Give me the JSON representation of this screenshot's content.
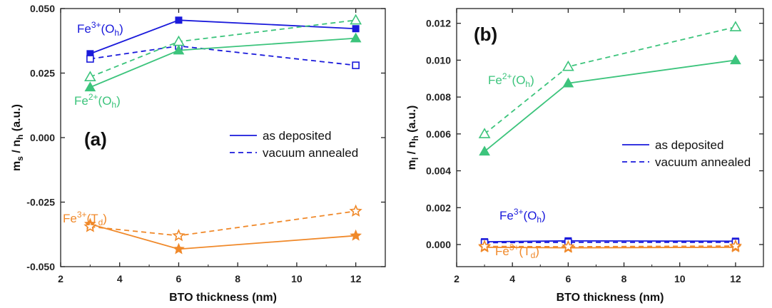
{
  "chart_data": [
    {
      "type": "line",
      "panel_label": "(a)",
      "xlabel": "BTO thickness (nm)",
      "ylabel_main": "m",
      "ylabel_sub1": "s",
      "ylabel_mid": " / n",
      "ylabel_sub2": "h",
      "ylabel_tail": " (a.u.)",
      "xlim": [
        2,
        13
      ],
      "ylim": [
        -0.05,
        0.05
      ],
      "xticks": [
        2,
        4,
        6,
        8,
        10,
        12
      ],
      "yticks": [
        -0.05,
        -0.025,
        0,
        0.025,
        0.05
      ],
      "ytick_labels": [
        "-0.050",
        "-0.025",
        "0.000",
        "0.025",
        "0.050"
      ],
      "x": [
        3,
        6,
        12
      ],
      "series": [
        {
          "ion": "Fe3+(Oh)",
          "condition": "as deposited",
          "color": "#1a1adb",
          "marker": "square",
          "filled": true,
          "dashed": false,
          "values": [
            0.0325,
            0.0455,
            0.0422
          ]
        },
        {
          "ion": "Fe3+(Oh)",
          "condition": "vacuum annealed",
          "color": "#1a1adb",
          "marker": "square",
          "filled": false,
          "dashed": true,
          "values": [
            0.0305,
            0.0355,
            0.028
          ]
        },
        {
          "ion": "Fe2+(Oh)",
          "condition": "as deposited",
          "color": "#3cc47c",
          "marker": "triangle",
          "filled": true,
          "dashed": false,
          "values": [
            0.0195,
            0.0338,
            0.0385
          ]
        },
        {
          "ion": "Fe2+(Oh)",
          "condition": "vacuum annealed",
          "color": "#3cc47c",
          "marker": "triangle",
          "filled": false,
          "dashed": true,
          "values": [
            0.0235,
            0.0372,
            0.0455
          ]
        },
        {
          "ion": "Fe3+(Td)",
          "condition": "as deposited",
          "color": "#f0892a",
          "marker": "star",
          "filled": true,
          "dashed": false,
          "values": [
            -0.0335,
            -0.0432,
            -0.038
          ]
        },
        {
          "ion": "Fe3+(Td)",
          "condition": "vacuum annealed",
          "color": "#f0892a",
          "marker": "star",
          "filled": false,
          "dashed": true,
          "values": [
            -0.0345,
            -0.038,
            -0.0285
          ]
        }
      ],
      "legend": {
        "placement": "center-right",
        "entries": [
          "as deposited",
          "vacuum annealed"
        ]
      },
      "annotations": [
        {
          "base": "Fe",
          "sup": "3+",
          "paren": "(O",
          "sub": "h",
          "close": ")",
          "color": "#1a1adb"
        },
        {
          "base": "Fe",
          "sup": "2+",
          "paren": "(O",
          "sub": "h",
          "close": ")",
          "color": "#3cc47c"
        },
        {
          "base": "Fe",
          "sup": "3+",
          "paren": "(T",
          "sub": "d",
          "close": ")",
          "color": "#f0892a"
        }
      ]
    },
    {
      "type": "line",
      "panel_label": "(b)",
      "xlabel": "BTO thickness (nm)",
      "ylabel_main": "m",
      "ylabel_sub1": "l",
      "ylabel_mid": " / n",
      "ylabel_sub2": "h",
      "ylabel_tail": " (a.u.)",
      "xlim": [
        2,
        13
      ],
      "ylim": [
        -0.0012,
        0.0128
      ],
      "xticks": [
        2,
        4,
        6,
        8,
        10,
        12
      ],
      "yticks": [
        0,
        0.002,
        0.004,
        0.006,
        0.008,
        0.01,
        0.012
      ],
      "ytick_labels": [
        "0.000",
        "0.002",
        "0.004",
        "0.006",
        "0.008",
        "0.010",
        "0.012"
      ],
      "x": [
        3,
        6,
        12
      ],
      "series": [
        {
          "ion": "Fe2+(Oh)",
          "condition": "as deposited",
          "color": "#3cc47c",
          "marker": "triangle",
          "filled": true,
          "dashed": false,
          "values": [
            0.00505,
            0.00875,
            0.01
          ]
        },
        {
          "ion": "Fe2+(Oh)",
          "condition": "vacuum annealed",
          "color": "#3cc47c",
          "marker": "triangle",
          "filled": false,
          "dashed": true,
          "values": [
            0.006,
            0.00965,
            0.0118
          ]
        },
        {
          "ion": "Fe3+(Oh)",
          "condition": "as deposited",
          "color": "#1a1adb",
          "marker": "square",
          "filled": true,
          "dashed": false,
          "values": [
            0.00015,
            0.0002,
            0.00018
          ]
        },
        {
          "ion": "Fe3+(Oh)",
          "condition": "vacuum annealed",
          "color": "#1a1adb",
          "marker": "square",
          "filled": false,
          "dashed": true,
          "values": [
            0.0001,
            0.00012,
            0.00012
          ]
        },
        {
          "ion": "Fe3+(Td)",
          "condition": "as deposited",
          "color": "#f0892a",
          "marker": "star",
          "filled": true,
          "dashed": false,
          "values": [
            -0.00015,
            -0.00018,
            -0.00015
          ]
        },
        {
          "ion": "Fe3+(Td)",
          "condition": "vacuum annealed",
          "color": "#f0892a",
          "marker": "star",
          "filled": false,
          "dashed": true,
          "values": [
            -0.0001,
            -0.00012,
            -8e-05
          ]
        }
      ],
      "legend": {
        "placement": "center-right",
        "entries": [
          "as deposited",
          "vacuum annealed"
        ]
      },
      "annotations": [
        {
          "base": "Fe",
          "sup": "2+",
          "paren": "(O",
          "sub": "h",
          "close": ")",
          "color": "#3cc47c"
        },
        {
          "base": "Fe",
          "sup": "3+",
          "paren": "(O",
          "sub": "h",
          "close": ")",
          "color": "#1a1adb"
        },
        {
          "base": "Fe",
          "sup": "3+",
          "paren": "(T",
          "sub": "d",
          "close": ")",
          "color": "#f0892a"
        }
      ]
    }
  ]
}
